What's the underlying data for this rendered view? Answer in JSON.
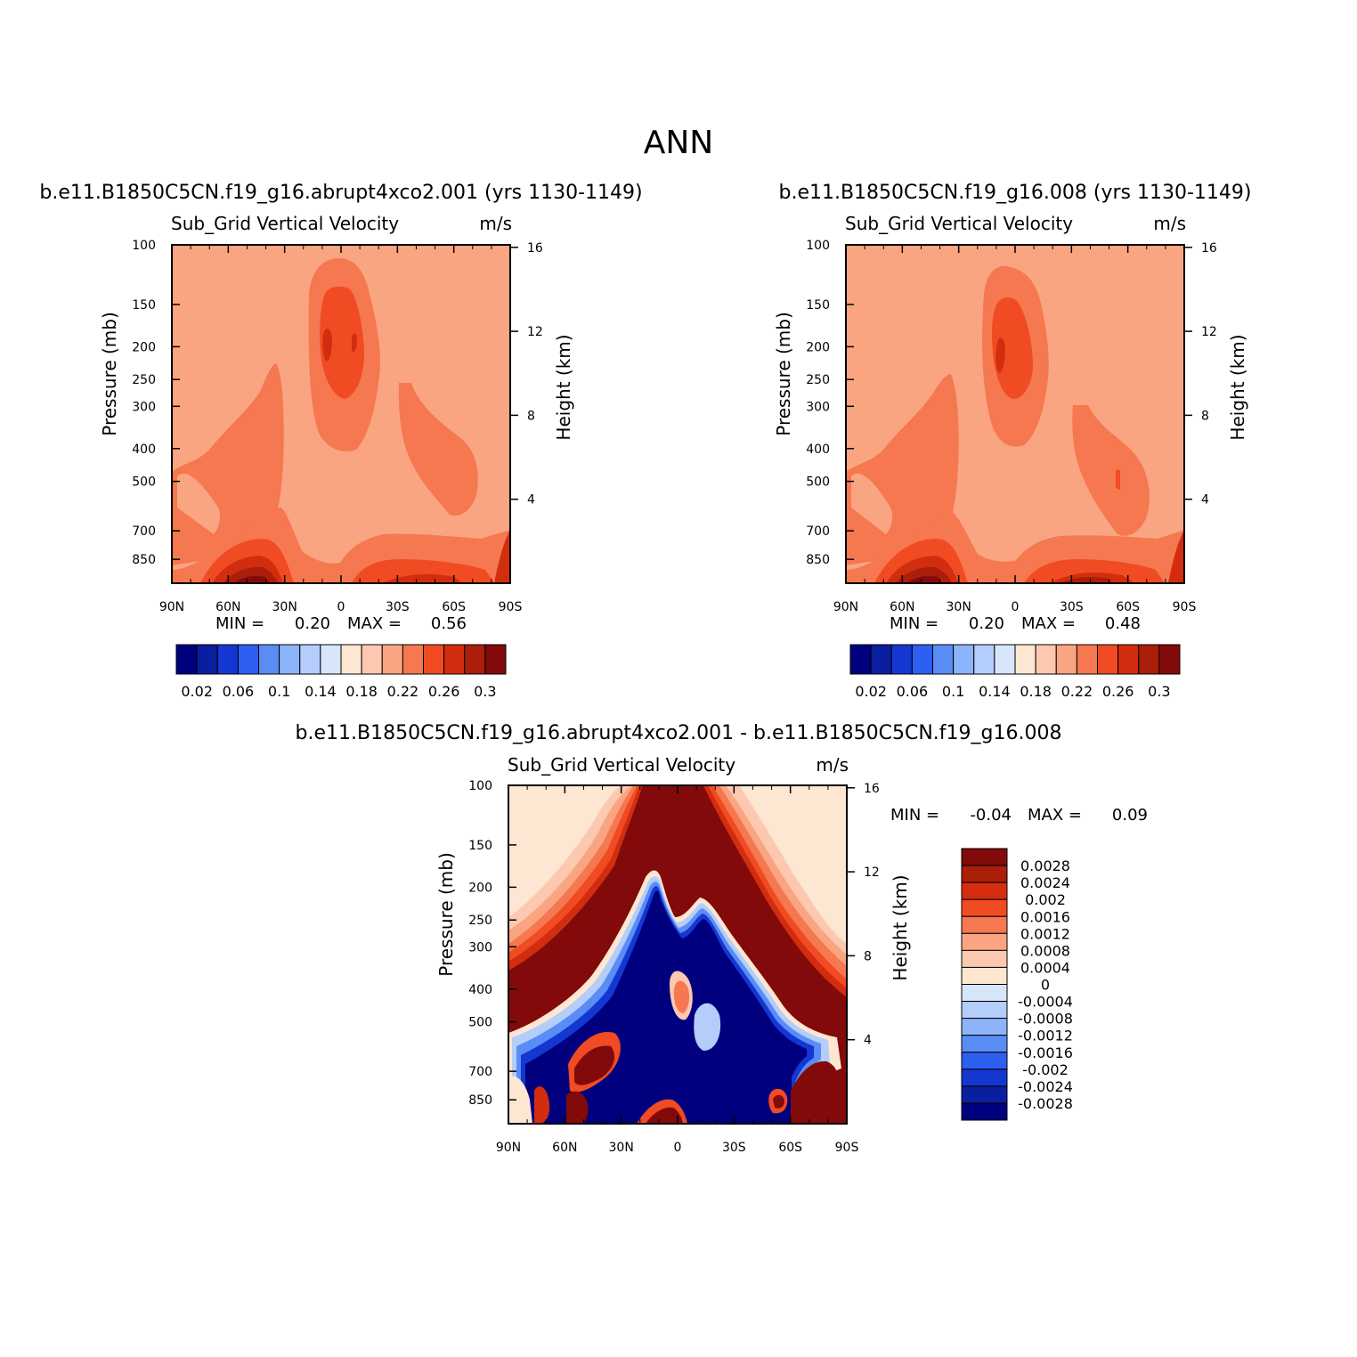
{
  "figure": {
    "main_title": "ANN",
    "panels": [
      {
        "id": "abrupt4xco2",
        "title": "b.e11.B1850C5CN.f19_g16.abrupt4xco2.001 (yrs 1130-1149)",
        "variable": "Sub_Grid Vertical Velocity",
        "units": "m/s",
        "min_label": "MIN =",
        "min_value": "0.20",
        "max_label": "MAX =",
        "max_value": "0.56"
      },
      {
        "id": "control",
        "title": "b.e11.B1850C5CN.f19_g16.008 (yrs 1130-1149)",
        "variable": "Sub_Grid Vertical Velocity",
        "units": "m/s",
        "min_label": "MIN =",
        "min_value": "0.20",
        "max_label": "MAX =",
        "max_value": "0.48"
      },
      {
        "id": "difference",
        "title": "b.e11.B1850C5CN.f19_g16.abrupt4xco2.001 - b.e11.B1850C5CN.f19_g16.008",
        "variable": "Sub_Grid Vertical Velocity",
        "units": "m/s",
        "min_label": "MIN =",
        "min_value": "-0.04",
        "max_label": "MAX =",
        "max_value": "0.09"
      }
    ]
  },
  "chart_data": [
    {
      "type": "heatmap",
      "title": "Sub_Grid Vertical Velocity",
      "units": "m/s",
      "ylabel": "Pressure (mb)",
      "y2label": "Height (km)",
      "x_ticks": [
        "90N",
        "60N",
        "30N",
        "0",
        "30S",
        "60S",
        "90S"
      ],
      "y_ticks": [
        100,
        150,
        200,
        250,
        300,
        400,
        500,
        700,
        850
      ],
      "y_scale": "log",
      "ylim": [
        100,
        1000
      ],
      "y2_ticks": [
        4,
        8,
        12,
        16
      ],
      "colorbar_levels": [
        0.02,
        0.04,
        0.06,
        0.08,
        0.1,
        0.12,
        0.14,
        0.16,
        0.18,
        0.2,
        0.22,
        0.24,
        0.26,
        0.28,
        0.3
      ],
      "colorbar_labels": [
        "0.02",
        "0.06",
        "0.1",
        "0.14",
        "0.18",
        "0.22",
        "0.26",
        "0.3"
      ],
      "min": 0.2,
      "max": 0.56
    },
    {
      "type": "heatmap",
      "title": "Sub_Grid Vertical Velocity",
      "units": "m/s",
      "ylabel": "Pressure (mb)",
      "y2label": "Height (km)",
      "x_ticks": [
        "90N",
        "60N",
        "30N",
        "0",
        "30S",
        "60S",
        "90S"
      ],
      "y_ticks": [
        100,
        150,
        200,
        250,
        300,
        400,
        500,
        700,
        850
      ],
      "y_scale": "log",
      "ylim": [
        100,
        1000
      ],
      "y2_ticks": [
        4,
        8,
        12,
        16
      ],
      "colorbar_levels": [
        0.02,
        0.04,
        0.06,
        0.08,
        0.1,
        0.12,
        0.14,
        0.16,
        0.18,
        0.2,
        0.22,
        0.24,
        0.26,
        0.28,
        0.3
      ],
      "colorbar_labels": [
        "0.02",
        "0.06",
        "0.1",
        "0.14",
        "0.18",
        "0.22",
        "0.26",
        "0.3"
      ],
      "min": 0.2,
      "max": 0.48
    },
    {
      "type": "heatmap",
      "title": "Sub_Grid Vertical Velocity",
      "units": "m/s",
      "ylabel": "Pressure (mb)",
      "y2label": "Height (km)",
      "x_ticks": [
        "90N",
        "60N",
        "30N",
        "0",
        "30S",
        "60S",
        "90S"
      ],
      "y_ticks": [
        100,
        150,
        200,
        250,
        300,
        400,
        500,
        700,
        850
      ],
      "y_scale": "log",
      "ylim": [
        100,
        1000
      ],
      "y2_ticks": [
        4,
        8,
        12,
        16
      ],
      "colorbar_levels": [
        0.0028,
        0.0024,
        0.002,
        0.0016,
        0.0012,
        0.0008,
        0.0004,
        0,
        -0.0004,
        -0.0008,
        -0.0012,
        -0.0016,
        -0.002,
        -0.0024,
        -0.0028
      ],
      "colorbar_labels": [
        "0.0028",
        "0.0024",
        "0.002",
        "0.0016",
        "0.0012",
        "0.0008",
        "0.0004",
        "0",
        "-0.0004",
        "-0.0008",
        "-0.0012",
        "-0.0016",
        "-0.002",
        "-0.0024",
        "-0.0028"
      ],
      "min": -0.04,
      "max": 0.09
    }
  ],
  "colors": {
    "sequential": [
      "#00007f",
      "#0a1ea0",
      "#1437d2",
      "#2d5ff0",
      "#5a8cf5",
      "#8cb4fa",
      "#b4cdfa",
      "#d7e6fa",
      "#fde6d2",
      "#fcc8b0",
      "#faa582",
      "#f57850",
      "#f04b23",
      "#d22d0f",
      "#aa1e0a",
      "#820a0a"
    ],
    "diff_cbar_top_to_bottom": [
      "#820a0a",
      "#aa1e0a",
      "#d72d0f",
      "#f04b23",
      "#f57850",
      "#faa582",
      "#fcc8b0",
      "#fde6d2",
      "#d7e6fa",
      "#b4cdfa",
      "#8cb4fa",
      "#5a8cf5",
      "#2d5ff0",
      "#1437d2",
      "#0a1ea0",
      "#00007f"
    ]
  }
}
